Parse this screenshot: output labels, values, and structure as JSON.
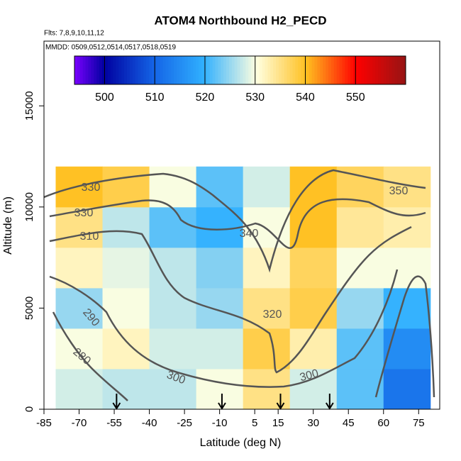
{
  "chart_data": {
    "type": "heatmap",
    "title": "ATOM4 Northbound H2_PECD",
    "subtitle": "Flts: 7,8,9,10,11,12",
    "annotation": "MMDD: 0509,0512,0514,0517,0518,0519",
    "x_label": "Latitude (deg N)",
    "y_label": "Altitude (m)",
    "xlim": [
      -85,
      84
    ],
    "xticks": [
      -85,
      -70,
      -55,
      -40,
      -25,
      -10,
      5,
      15,
      30,
      45,
      60,
      75
    ],
    "ylim": [
      0,
      18200
    ],
    "yticks": [
      0,
      5000,
      10000,
      15000
    ],
    "clim": [
      494,
      560
    ],
    "cticks": [
      500,
      510,
      520,
      530,
      540,
      550
    ],
    "heatmap": {
      "lat_edges": [
        -80,
        -60,
        -40,
        -20,
        0,
        20,
        40,
        60,
        80
      ],
      "alt_edges": [
        0,
        2000,
        4000,
        6000,
        8000,
        10000,
        12000
      ],
      "values": [
        [
          528,
          527,
          527,
          530,
          535,
          528,
          522,
          512
        ],
        [
          530,
          532,
          528,
          528,
          538,
          533,
          522,
          515
        ],
        [
          525,
          530,
          527,
          525,
          535,
          538,
          525,
          520
        ],
        [
          532,
          529,
          527,
          524,
          532,
          537,
          530,
          530
        ],
        [
          535,
          527,
          522,
          520,
          530,
          540,
          534,
          533
        ],
        [
          540,
          538,
          530,
          522,
          528,
          540,
          537,
          535
        ]
      ]
    },
    "contour_labels": [
      330,
      330,
      310,
      290,
      280,
      300,
      300,
      340,
      320,
      350
    ],
    "flight_arrows": [
      -54,
      -9,
      16,
      37
    ]
  }
}
